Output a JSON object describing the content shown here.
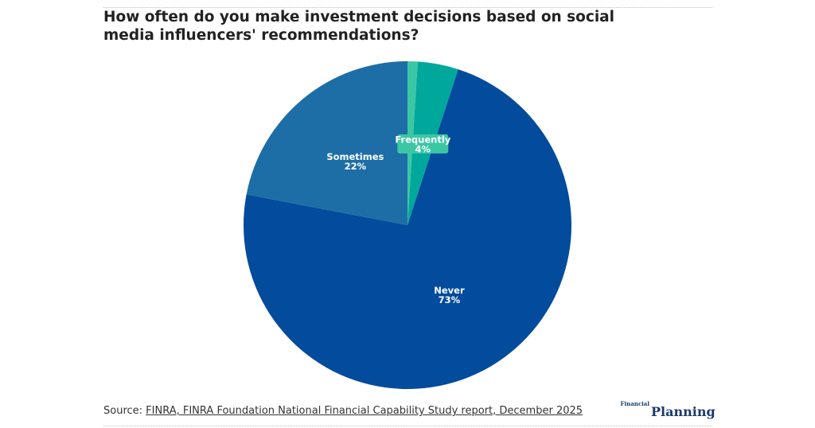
{
  "chart_data": {
    "type": "pie",
    "title": "How often do you make investment decisions based on social media influencers' recommendations?",
    "categories": [
      null,
      "Frequently",
      "Never",
      "Sometimes"
    ],
    "values": [
      1,
      4,
      73,
      22
    ],
    "value_labels": [
      null,
      "4%",
      "73%",
      "22%"
    ],
    "colors": [
      "#3cc7a4",
      "#00a89c",
      "#034b9c",
      "#1d6ea6"
    ],
    "source": {
      "label": "Source:",
      "text": "FINRA, FINRA Foundation National Financial Capability Study report, December 2025"
    },
    "logo": {
      "small": "Financial",
      "big": "Planning"
    }
  }
}
